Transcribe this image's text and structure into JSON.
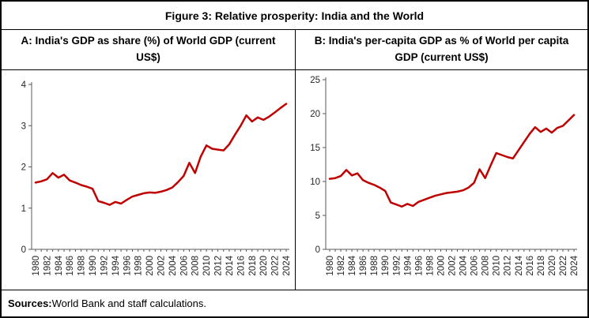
{
  "figure": {
    "title": "Figure 3: Relative prosperity: India and the World"
  },
  "panels": [
    {
      "title": "A: India's GDP as share (%) of World GDP (current US$)"
    },
    {
      "title": "B: India's per-capita GDP as % of World per capita GDP (current US$)"
    }
  ],
  "sources": {
    "label": "Sources:",
    "text": " World Bank and staff calculations."
  },
  "colors": {
    "line": "#C00000",
    "axis": "#595959",
    "tick_label": "#262626"
  },
  "chart_data": [
    {
      "type": "line",
      "panel": "A",
      "title": "A: India's GDP as share (%) of World GDP (current US$)",
      "x": [
        1980,
        1981,
        1982,
        1983,
        1984,
        1985,
        1986,
        1987,
        1988,
        1989,
        1990,
        1991,
        1992,
        1993,
        1994,
        1995,
        1996,
        1997,
        1998,
        1999,
        2000,
        2001,
        2002,
        2003,
        2004,
        2005,
        2006,
        2007,
        2008,
        2009,
        2010,
        2011,
        2012,
        2013,
        2014,
        2015,
        2016,
        2017,
        2018,
        2019,
        2020,
        2021,
        2022,
        2023,
        2024
      ],
      "values": [
        1.62,
        1.65,
        1.7,
        1.85,
        1.74,
        1.81,
        1.67,
        1.62,
        1.56,
        1.52,
        1.47,
        1.17,
        1.13,
        1.08,
        1.15,
        1.11,
        1.2,
        1.28,
        1.32,
        1.36,
        1.38,
        1.37,
        1.4,
        1.44,
        1.5,
        1.63,
        1.78,
        2.1,
        1.85,
        2.25,
        2.52,
        2.44,
        2.42,
        2.4,
        2.55,
        2.78,
        3.0,
        3.25,
        3.1,
        3.2,
        3.14,
        3.22,
        3.32,
        3.43,
        3.53
      ],
      "ylim": [
        0,
        4
      ],
      "ytick_step": 1,
      "xlabel_every": 2,
      "grid": false,
      "legend": "none",
      "line_color": "#C00000"
    },
    {
      "type": "line",
      "panel": "B",
      "title": "B: India's per-capita GDP as % of World per capita GDP (current US$)",
      "x": [
        1980,
        1981,
        1982,
        1983,
        1984,
        1985,
        1986,
        1987,
        1988,
        1989,
        1990,
        1991,
        1992,
        1993,
        1994,
        1995,
        1996,
        1997,
        1998,
        1999,
        2000,
        2001,
        2002,
        2003,
        2004,
        2005,
        2006,
        2007,
        2008,
        2009,
        2010,
        2011,
        2012,
        2013,
        2014,
        2015,
        2016,
        2017,
        2018,
        2019,
        2020,
        2021,
        2022,
        2023,
        2024
      ],
      "values": [
        10.4,
        10.5,
        10.8,
        11.7,
        10.9,
        11.2,
        10.2,
        9.8,
        9.5,
        9.1,
        8.6,
        6.9,
        6.6,
        6.3,
        6.7,
        6.4,
        7.0,
        7.3,
        7.6,
        7.9,
        8.1,
        8.3,
        8.4,
        8.5,
        8.7,
        9.1,
        9.8,
        11.8,
        10.5,
        12.4,
        14.2,
        13.9,
        13.6,
        13.4,
        14.6,
        15.8,
        17.0,
        18.0,
        17.3,
        17.8,
        17.2,
        17.9,
        18.2,
        19.0,
        19.8
      ],
      "ylim": [
        0,
        25
      ],
      "ytick_step": 5,
      "xlabel_every": 2,
      "grid": false,
      "legend": "none",
      "line_color": "#C00000"
    }
  ]
}
